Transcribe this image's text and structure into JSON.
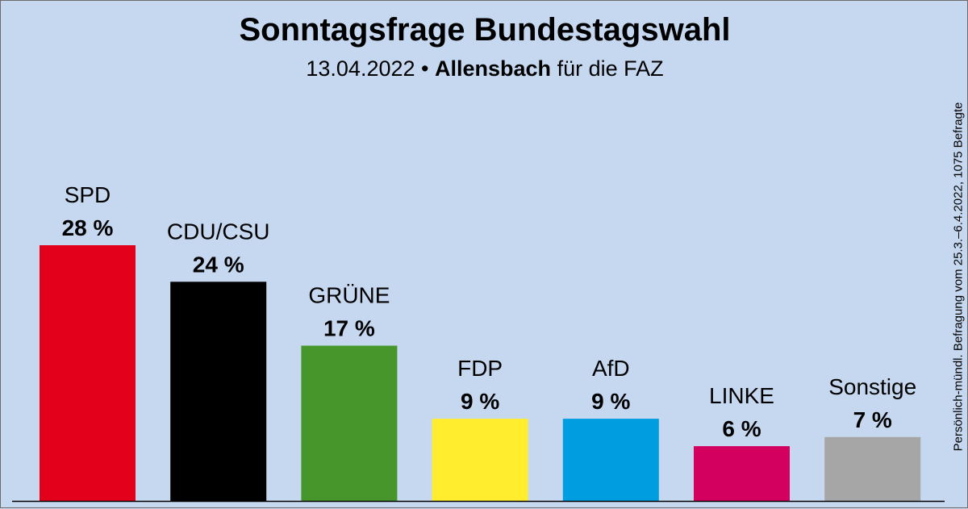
{
  "header": {
    "title": "Sonntagsfrage Bundestagswahl",
    "date": "13.04.2022",
    "separator": "•",
    "institute": "Allensbach",
    "client": "für die FAZ"
  },
  "side_note": "Persönlich-mündl. Befragung vom 25.3.–6.4.2022, 1075 Befragte",
  "chart_data": {
    "type": "bar",
    "title": "Sonntagsfrage Bundestagswahl",
    "subtitle": "13.04.2022 • Allensbach für die FAZ",
    "xlabel": "",
    "ylabel": "",
    "unit": "%",
    "categories": [
      "SPD",
      "CDU/CSU",
      "GRÜNE",
      "FDP",
      "AfD",
      "LINKE",
      "Sonstige"
    ],
    "values": [
      28,
      24,
      17,
      9,
      9,
      6,
      7
    ],
    "value_labels": [
      "28 %",
      "24 %",
      "17 %",
      "9 %",
      "9 %",
      "6 %",
      "7 %"
    ],
    "colors": [
      "#e3001b",
      "#000000",
      "#46962b",
      "#ffed2e",
      "#009ee0",
      "#d4005f",
      "#a6a6a6"
    ],
    "ylim": [
      0,
      28
    ],
    "grid": false,
    "legend": "none"
  }
}
